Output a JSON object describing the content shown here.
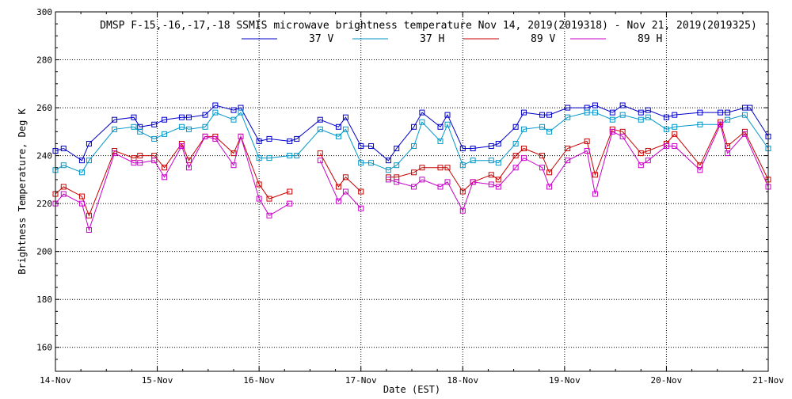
{
  "chart_data": {
    "type": "line",
    "title": "DMSP F-15,-16,-17,-18 SSMIS microwave brightness temperature Nov 14, 2019(2019318) - Nov 21, 2019(2019325)",
    "xlabel": "Date (EST)",
    "ylabel": "Brightness Temperature, Deg K",
    "x_tick_labels": [
      "14-Nov",
      "15-Nov",
      "16-Nov",
      "17-Nov",
      "18-Nov",
      "19-Nov",
      "20-Nov",
      "21-Nov"
    ],
    "xlim": [
      0,
      7
    ],
    "x_units": "days since 14-Nov 00:00 EST",
    "ylim": [
      150,
      300
    ],
    "y_ticks": [
      160,
      180,
      200,
      220,
      240,
      260,
      280,
      300
    ],
    "grid": true,
    "legend": "top-center",
    "series": [
      {
        "name": "37 V",
        "color": "#0000c8",
        "points": [
          [
            0.0,
            242
          ],
          [
            0.08,
            243
          ],
          [
            0.26,
            238
          ],
          [
            0.33,
            245
          ],
          [
            0.58,
            255
          ],
          [
            0.77,
            256
          ],
          [
            0.83,
            252
          ],
          [
            0.97,
            253
          ],
          [
            1.07,
            255
          ],
          [
            1.24,
            256
          ],
          [
            1.31,
            256
          ],
          [
            1.47,
            257
          ],
          [
            1.57,
            261
          ],
          [
            1.75,
            259
          ],
          [
            1.82,
            260
          ],
          [
            2.0,
            246
          ],
          [
            2.1,
            247
          ],
          [
            2.3,
            246
          ],
          [
            2.37,
            247
          ],
          [
            2.6,
            255
          ],
          [
            2.78,
            252
          ],
          [
            2.85,
            256
          ],
          [
            3.0,
            244
          ],
          [
            3.1,
            244
          ],
          [
            3.27,
            238
          ],
          [
            3.35,
            243
          ],
          [
            3.52,
            252
          ],
          [
            3.6,
            258
          ],
          [
            3.78,
            252
          ],
          [
            3.85,
            257
          ],
          [
            4.0,
            243
          ],
          [
            4.1,
            243
          ],
          [
            4.28,
            244
          ],
          [
            4.35,
            245
          ],
          [
            4.52,
            252
          ],
          [
            4.6,
            258
          ],
          [
            4.78,
            257
          ],
          [
            4.85,
            257
          ],
          [
            5.03,
            260
          ],
          [
            5.22,
            260
          ],
          [
            5.3,
            261
          ],
          [
            5.47,
            258
          ],
          [
            5.57,
            261
          ],
          [
            5.75,
            258
          ],
          [
            5.82,
            259
          ],
          [
            6.0,
            256
          ],
          [
            6.08,
            257
          ],
          [
            6.33,
            258
          ],
          [
            6.53,
            258
          ],
          [
            6.6,
            258
          ],
          [
            6.77,
            260
          ],
          [
            6.82,
            260
          ],
          [
            7.0,
            248
          ]
        ]
      },
      {
        "name": "37 H",
        "color": "#0096c8",
        "points": [
          [
            0.0,
            234
          ],
          [
            0.08,
            236
          ],
          [
            0.26,
            233
          ],
          [
            0.33,
            238
          ],
          [
            0.58,
            251
          ],
          [
            0.77,
            252
          ],
          [
            0.83,
            250
          ],
          [
            0.97,
            247
          ],
          [
            1.07,
            249
          ],
          [
            1.24,
            252
          ],
          [
            1.31,
            251
          ],
          [
            1.47,
            252
          ],
          [
            1.57,
            258
          ],
          [
            1.75,
            255
          ],
          [
            1.82,
            258
          ],
          [
            2.0,
            239
          ],
          [
            2.1,
            239
          ],
          [
            2.3,
            240
          ],
          [
            2.37,
            240
          ],
          [
            2.6,
            251
          ],
          [
            2.78,
            248
          ],
          [
            2.85,
            251
          ],
          [
            3.0,
            237
          ],
          [
            3.1,
            237
          ],
          [
            3.27,
            234
          ],
          [
            3.35,
            236
          ],
          [
            3.52,
            244
          ],
          [
            3.6,
            254
          ],
          [
            3.78,
            246
          ],
          [
            3.85,
            253
          ],
          [
            4.0,
            236
          ],
          [
            4.1,
            238
          ],
          [
            4.28,
            238
          ],
          [
            4.35,
            237
          ],
          [
            4.52,
            245
          ],
          [
            4.6,
            251
          ],
          [
            4.78,
            252
          ],
          [
            4.85,
            250
          ],
          [
            5.03,
            256
          ],
          [
            5.22,
            258
          ],
          [
            5.3,
            258
          ],
          [
            5.47,
            255
          ],
          [
            5.57,
            257
          ],
          [
            5.75,
            255
          ],
          [
            5.82,
            256
          ],
          [
            6.0,
            251
          ],
          [
            6.08,
            252
          ],
          [
            6.33,
            253
          ],
          [
            6.53,
            253
          ],
          [
            6.6,
            255
          ],
          [
            6.77,
            257
          ],
          [
            7.0,
            243
          ]
        ]
      },
      {
        "name": "89 V",
        "color": "#c80000",
        "points": [
          [
            0.0,
            224
          ],
          [
            0.08,
            227
          ],
          [
            0.26,
            223
          ],
          [
            0.33,
            215
          ],
          [
            0.58,
            242
          ],
          [
            0.77,
            239
          ],
          [
            0.83,
            240
          ],
          [
            0.97,
            240
          ],
          [
            1.07,
            235
          ],
          [
            1.24,
            245
          ],
          [
            1.31,
            238
          ],
          [
            1.47,
            248
          ],
          [
            1.57,
            248
          ],
          [
            1.75,
            241
          ],
          [
            1.82,
            248
          ],
          [
            2.0,
            228
          ],
          [
            2.1,
            222
          ],
          [
            2.3,
            225
          ],
          null,
          [
            2.6,
            241
          ],
          [
            2.78,
            227
          ],
          [
            2.85,
            231
          ],
          [
            3.0,
            225
          ],
          null,
          [
            3.27,
            231
          ],
          [
            3.35,
            231
          ],
          [
            3.52,
            233
          ],
          [
            3.6,
            235
          ],
          [
            3.78,
            235
          ],
          [
            3.85,
            235
          ],
          [
            4.0,
            225
          ],
          [
            4.1,
            229
          ],
          [
            4.28,
            232
          ],
          [
            4.35,
            230
          ],
          [
            4.52,
            240
          ],
          [
            4.6,
            243
          ],
          [
            4.78,
            240
          ],
          [
            4.85,
            233
          ],
          [
            5.03,
            243
          ],
          [
            5.22,
            246
          ],
          [
            5.3,
            232
          ],
          [
            5.47,
            251
          ],
          [
            5.57,
            250
          ],
          [
            5.75,
            241
          ],
          [
            5.82,
            242
          ],
          [
            6.0,
            245
          ],
          [
            6.08,
            249
          ],
          [
            6.33,
            236
          ],
          [
            6.53,
            254
          ],
          [
            6.6,
            244
          ],
          [
            6.77,
            250
          ],
          [
            7.0,
            230
          ]
        ]
      },
      {
        "name": "89 H",
        "color": "#c800c8",
        "points": [
          [
            0.0,
            220
          ],
          [
            0.08,
            224
          ],
          [
            0.26,
            220
          ],
          [
            0.33,
            209
          ],
          [
            0.58,
            241
          ],
          [
            0.77,
            237
          ],
          [
            0.83,
            237
          ],
          [
            0.97,
            238
          ],
          [
            1.07,
            231
          ],
          [
            1.24,
            244
          ],
          [
            1.31,
            235
          ],
          [
            1.47,
            248
          ],
          [
            1.57,
            247
          ],
          [
            1.75,
            236
          ],
          [
            1.82,
            248
          ],
          [
            2.0,
            222
          ],
          [
            2.1,
            215
          ],
          [
            2.3,
            220
          ],
          null,
          [
            2.6,
            238
          ],
          [
            2.78,
            221
          ],
          [
            2.85,
            225
          ],
          [
            3.0,
            218
          ],
          null,
          [
            3.27,
            230
          ],
          [
            3.35,
            229
          ],
          [
            3.52,
            227
          ],
          [
            3.6,
            230
          ],
          [
            3.78,
            227
          ],
          [
            3.85,
            229
          ],
          [
            4.0,
            217
          ],
          [
            4.1,
            229
          ],
          [
            4.28,
            228
          ],
          [
            4.35,
            227
          ],
          [
            4.52,
            235
          ],
          [
            4.6,
            239
          ],
          [
            4.78,
            235
          ],
          [
            4.85,
            227
          ],
          [
            5.03,
            238
          ],
          [
            5.22,
            242
          ],
          [
            5.3,
            224
          ],
          [
            5.47,
            250
          ],
          [
            5.57,
            248
          ],
          [
            5.75,
            236
          ],
          [
            5.82,
            238
          ],
          [
            6.0,
            244
          ],
          [
            6.08,
            244
          ],
          [
            6.33,
            234
          ],
          [
            6.53,
            253
          ],
          [
            6.6,
            241
          ],
          [
            6.77,
            249
          ],
          [
            7.0,
            227
          ]
        ]
      }
    ]
  }
}
